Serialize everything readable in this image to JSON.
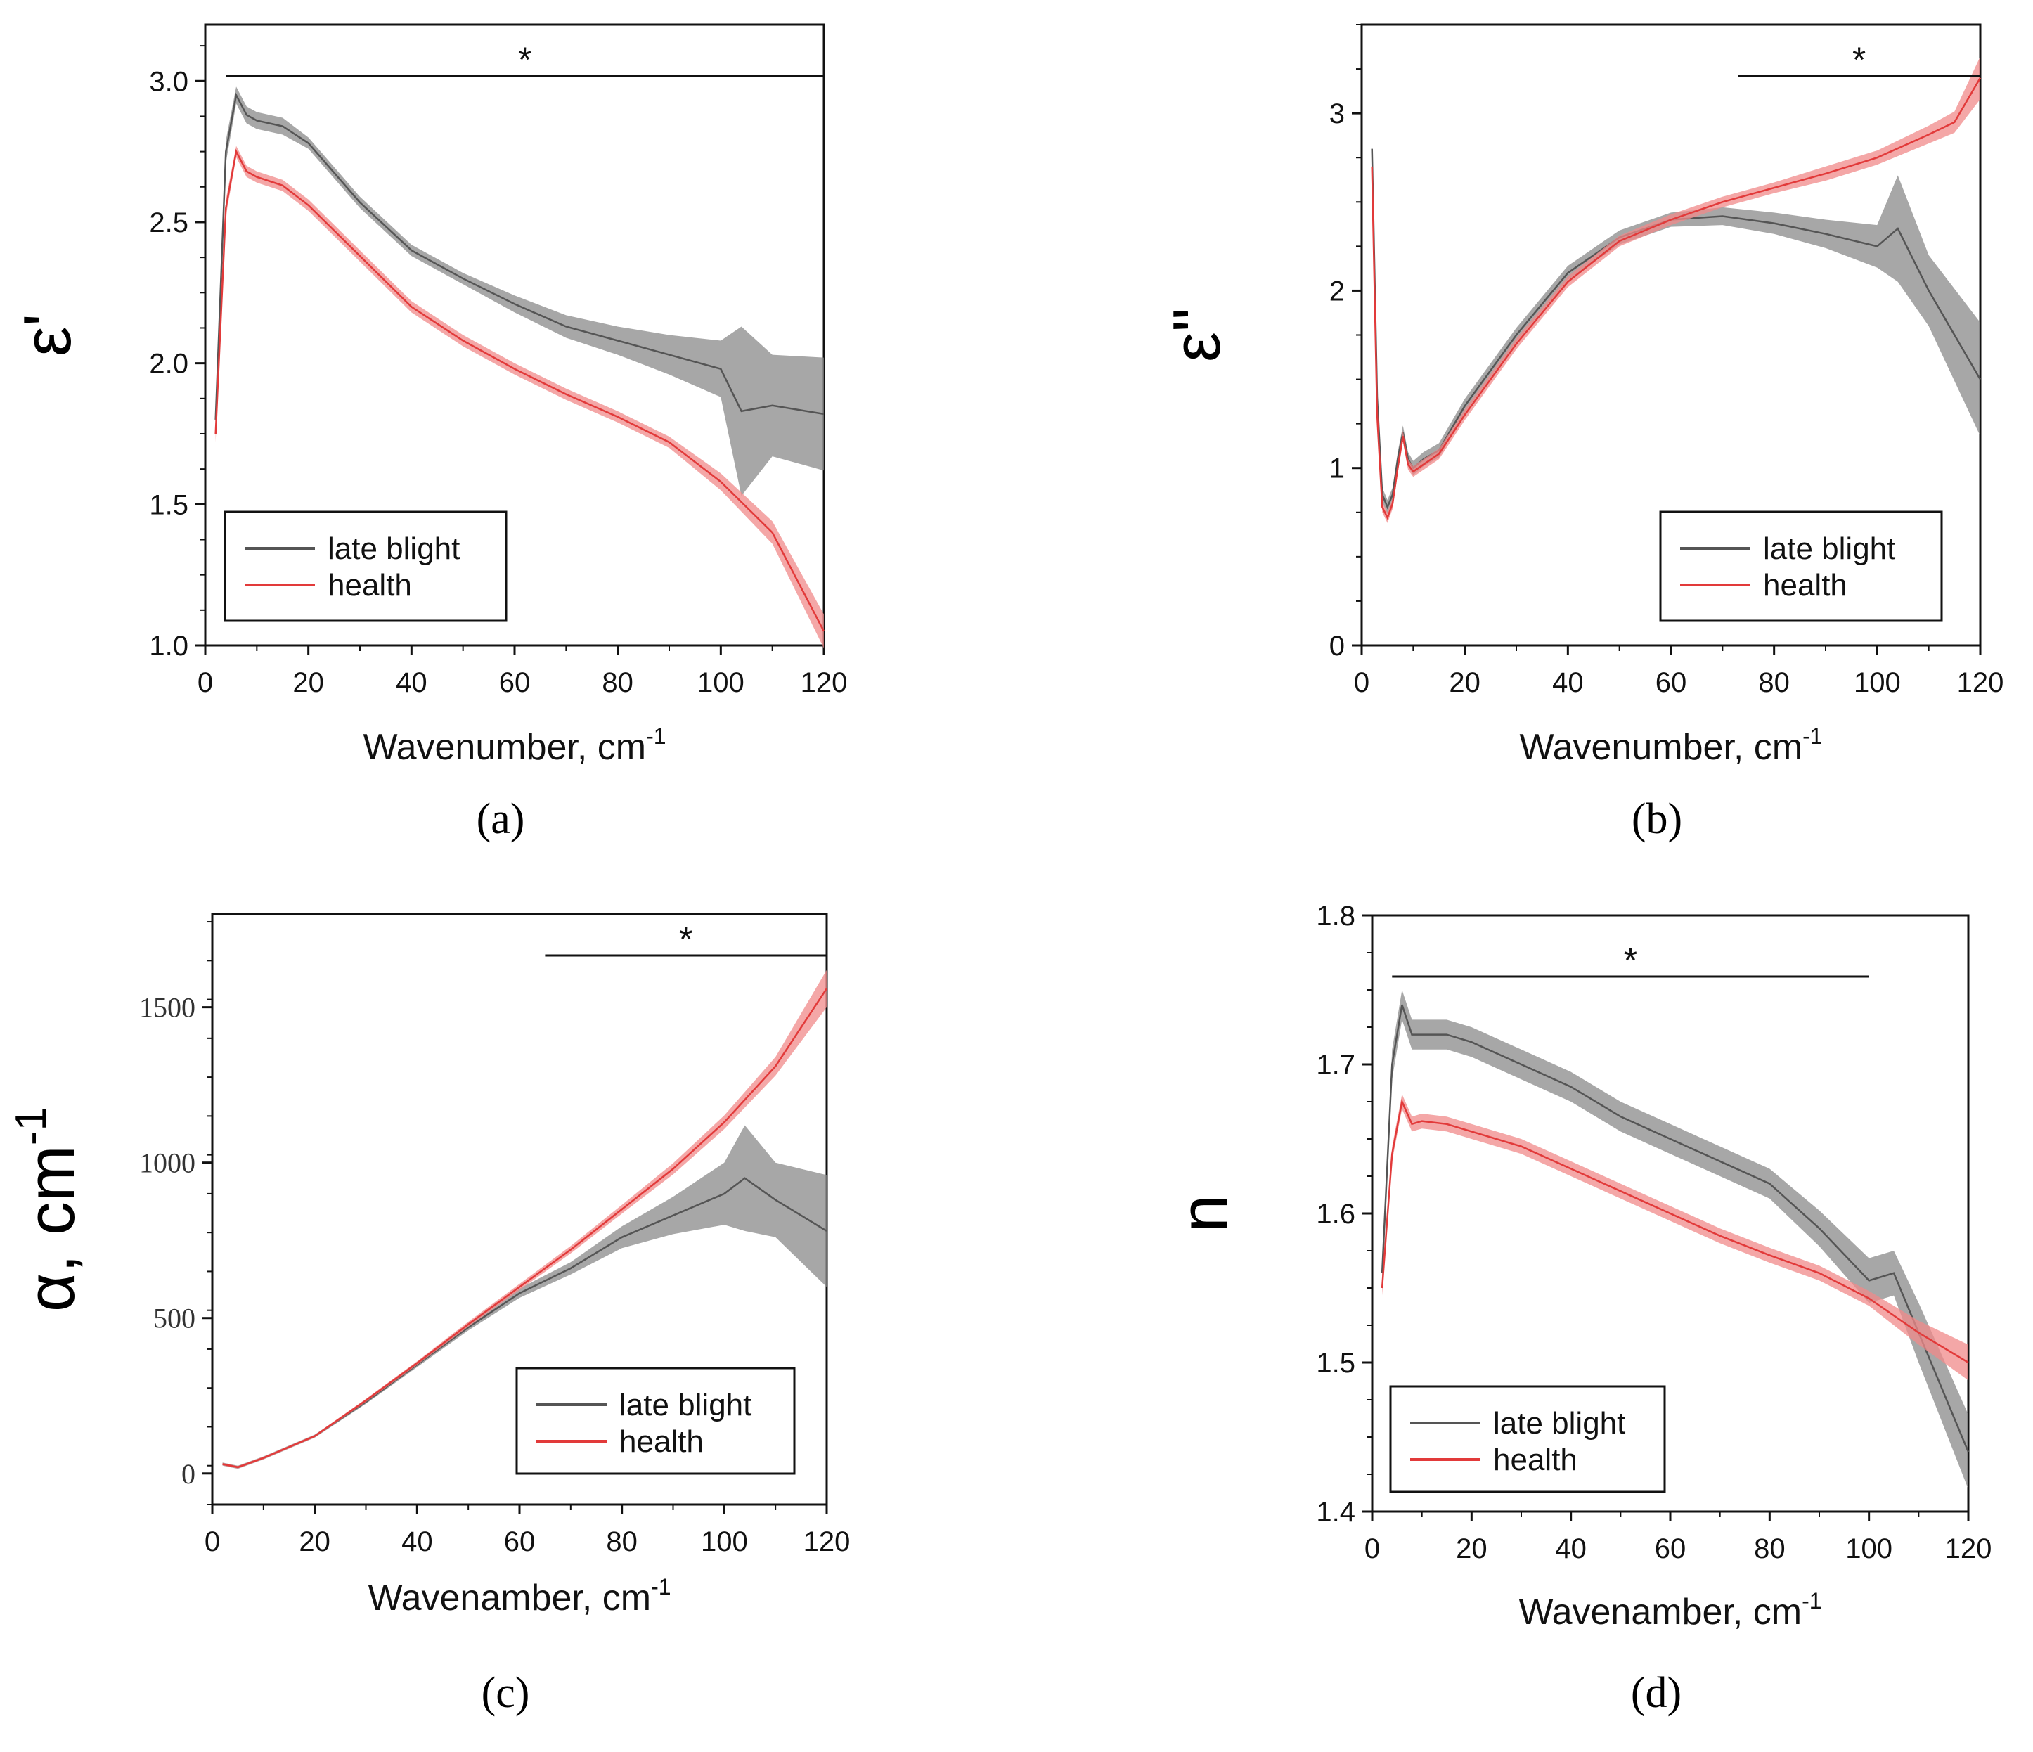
{
  "colors": {
    "late_blight": "#555555",
    "health": "#e23a3a",
    "late_blight_band": "#8a8a8a",
    "health_band": "#f08a8a"
  },
  "chart_data": [
    {
      "panel": "(a)",
      "type": "line",
      "xlabel": "Wavenumber, cm",
      "xlabel_sup": "-1",
      "ylabel": "ε'",
      "xlim": [
        0,
        120
      ],
      "ylim": [
        1.0,
        3.2
      ],
      "xticks": [
        0,
        20,
        40,
        60,
        80,
        100,
        120
      ],
      "yticks": [
        1.0,
        1.5,
        2.0,
        2.5,
        3.0
      ],
      "ytick_labels": [
        "1.0",
        "1.5",
        "2.0",
        "2.5",
        "3.0"
      ],
      "significance": {
        "label": "*",
        "x_range": [
          4,
          120
        ]
      },
      "legend": [
        "late blight",
        "health"
      ],
      "series": [
        {
          "name": "late blight",
          "x": [
            2,
            4,
            6,
            8,
            10,
            15,
            20,
            30,
            40,
            50,
            60,
            70,
            80,
            90,
            100,
            104,
            110,
            120
          ],
          "y": [
            1.8,
            2.75,
            2.95,
            2.88,
            2.86,
            2.84,
            2.78,
            2.57,
            2.4,
            2.3,
            2.21,
            2.13,
            2.08,
            2.03,
            1.98,
            1.83,
            1.85,
            1.82
          ],
          "err": [
            0.05,
            0.04,
            0.03,
            0.03,
            0.03,
            0.03,
            0.02,
            0.02,
            0.02,
            0.02,
            0.03,
            0.04,
            0.05,
            0.07,
            0.1,
            0.3,
            0.18,
            0.2
          ]
        },
        {
          "name": "health",
          "x": [
            2,
            4,
            6,
            8,
            10,
            15,
            20,
            30,
            40,
            50,
            60,
            70,
            80,
            90,
            100,
            110,
            120
          ],
          "y": [
            1.75,
            2.55,
            2.75,
            2.68,
            2.66,
            2.63,
            2.56,
            2.38,
            2.2,
            2.08,
            1.98,
            1.89,
            1.81,
            1.72,
            1.58,
            1.4,
            1.05
          ],
          "err": [
            0.03,
            0.03,
            0.02,
            0.02,
            0.02,
            0.02,
            0.02,
            0.02,
            0.02,
            0.02,
            0.02,
            0.02,
            0.02,
            0.02,
            0.03,
            0.04,
            0.06
          ]
        }
      ]
    },
    {
      "panel": "(b)",
      "type": "line",
      "xlabel": "Wavenumber, cm",
      "xlabel_sup": "-1",
      "ylabel": "ε\"",
      "xlim": [
        0,
        120
      ],
      "ylim": [
        0,
        3.5
      ],
      "xticks": [
        0,
        20,
        40,
        60,
        80,
        100,
        120
      ],
      "yticks": [
        0,
        1,
        2,
        3
      ],
      "ytick_labels": [
        "0",
        "1",
        "2",
        "3"
      ],
      "significance": {
        "label": "*",
        "x_range": [
          73,
          120
        ]
      },
      "legend": [
        "late blight",
        "health"
      ],
      "series": [
        {
          "name": "late blight",
          "x": [
            2,
            3,
            4,
            5,
            6,
            7,
            8,
            9,
            10,
            12,
            15,
            20,
            30,
            40,
            50,
            60,
            70,
            80,
            90,
            100,
            104,
            110,
            120
          ],
          "y": [
            2.8,
            1.4,
            0.85,
            0.78,
            0.85,
            1.05,
            1.2,
            1.05,
            1.0,
            1.05,
            1.1,
            1.35,
            1.75,
            2.1,
            2.3,
            2.4,
            2.42,
            2.38,
            2.32,
            2.25,
            2.35,
            2.0,
            1.5
          ],
          "err": [
            0.05,
            0.05,
            0.04,
            0.04,
            0.04,
            0.04,
            0.04,
            0.04,
            0.04,
            0.04,
            0.04,
            0.04,
            0.04,
            0.04,
            0.04,
            0.04,
            0.05,
            0.06,
            0.08,
            0.12,
            0.3,
            0.2,
            0.32
          ]
        },
        {
          "name": "health",
          "x": [
            2,
            3,
            4,
            5,
            6,
            7,
            8,
            9,
            10,
            12,
            15,
            20,
            30,
            40,
            50,
            60,
            70,
            80,
            90,
            100,
            110,
            115,
            120
          ],
          "y": [
            2.7,
            1.3,
            0.78,
            0.72,
            0.8,
            1.0,
            1.18,
            1.02,
            0.98,
            1.02,
            1.08,
            1.3,
            1.7,
            2.05,
            2.28,
            2.4,
            2.5,
            2.58,
            2.66,
            2.75,
            2.88,
            2.95,
            3.2
          ],
          "err": [
            0.04,
            0.04,
            0.03,
            0.03,
            0.03,
            0.03,
            0.03,
            0.03,
            0.03,
            0.03,
            0.03,
            0.03,
            0.03,
            0.03,
            0.03,
            0.03,
            0.03,
            0.03,
            0.04,
            0.04,
            0.05,
            0.06,
            0.12
          ]
        }
      ]
    },
    {
      "panel": "(c)",
      "type": "line",
      "xlabel": "Wavenamber, cm",
      "xlabel_sup": "-1",
      "ylabel": "α, cm",
      "ylabel_sup": "-1",
      "xlim": [
        0,
        120
      ],
      "ylim": [
        -100,
        1800
      ],
      "xticks": [
        0,
        20,
        40,
        60,
        80,
        100,
        120
      ],
      "yticks": [
        0,
        500,
        1000,
        1500
      ],
      "ytick_labels": [
        "0",
        "500",
        "1000",
        "1500"
      ],
      "significance": {
        "label": "*",
        "x_range": [
          65,
          120
        ]
      },
      "legend": [
        "late blight",
        "health"
      ],
      "series": [
        {
          "name": "late blight",
          "x": [
            2,
            5,
            10,
            20,
            30,
            40,
            50,
            60,
            70,
            80,
            90,
            100,
            104,
            110,
            120
          ],
          "y": [
            30,
            20,
            50,
            120,
            230,
            350,
            470,
            580,
            660,
            760,
            830,
            900,
            950,
            880,
            780
          ],
          "err": [
            5,
            5,
            5,
            5,
            6,
            8,
            10,
            15,
            20,
            35,
            60,
            100,
            170,
            120,
            180
          ]
        },
        {
          "name": "health",
          "x": [
            2,
            5,
            10,
            20,
            30,
            40,
            50,
            60,
            70,
            80,
            90,
            100,
            110,
            120
          ],
          "y": [
            30,
            20,
            50,
            120,
            235,
            355,
            480,
            600,
            720,
            850,
            980,
            1130,
            1310,
            1560
          ],
          "err": [
            4,
            4,
            4,
            4,
            5,
            6,
            8,
            10,
            12,
            14,
            18,
            22,
            30,
            60
          ]
        }
      ]
    },
    {
      "panel": "(d)",
      "type": "line",
      "xlabel": "Wavenamber, cm",
      "xlabel_sup": "-1",
      "ylabel": "n",
      "xlim": [
        0,
        120
      ],
      "ylim": [
        1.4,
        1.8
      ],
      "xticks": [
        0,
        20,
        40,
        60,
        80,
        100,
        120
      ],
      "yticks": [
        1.4,
        1.5,
        1.6,
        1.7,
        1.8
      ],
      "ytick_labels": [
        "1.4",
        "1.5",
        "1.6",
        "1.7",
        "1.8"
      ],
      "significance": {
        "label": "*",
        "x_range": [
          4,
          100
        ]
      },
      "legend": [
        "late blight",
        "health"
      ],
      "series": [
        {
          "name": "late blight",
          "x": [
            2,
            4,
            6,
            8,
            10,
            15,
            20,
            30,
            40,
            50,
            60,
            70,
            80,
            90,
            100,
            105,
            110,
            120
          ],
          "y": [
            1.56,
            1.7,
            1.74,
            1.72,
            1.72,
            1.72,
            1.715,
            1.7,
            1.685,
            1.665,
            1.65,
            1.635,
            1.62,
            1.59,
            1.555,
            1.56,
            1.52,
            1.44
          ],
          "err": [
            0.005,
            0.01,
            0.01,
            0.01,
            0.01,
            0.01,
            0.01,
            0.01,
            0.01,
            0.01,
            0.01,
            0.01,
            0.01,
            0.012,
            0.015,
            0.015,
            0.02,
            0.025
          ]
        },
        {
          "name": "health",
          "x": [
            2,
            4,
            6,
            8,
            10,
            15,
            20,
            30,
            40,
            50,
            60,
            70,
            80,
            90,
            100,
            110,
            120
          ],
          "y": [
            1.55,
            1.64,
            1.675,
            1.66,
            1.662,
            1.66,
            1.655,
            1.645,
            1.63,
            1.615,
            1.6,
            1.585,
            1.572,
            1.56,
            1.543,
            1.52,
            1.5
          ],
          "err": [
            0.005,
            0.005,
            0.005,
            0.005,
            0.005,
            0.005,
            0.005,
            0.005,
            0.005,
            0.005,
            0.005,
            0.005,
            0.005,
            0.005,
            0.005,
            0.008,
            0.012
          ]
        }
      ]
    }
  ]
}
